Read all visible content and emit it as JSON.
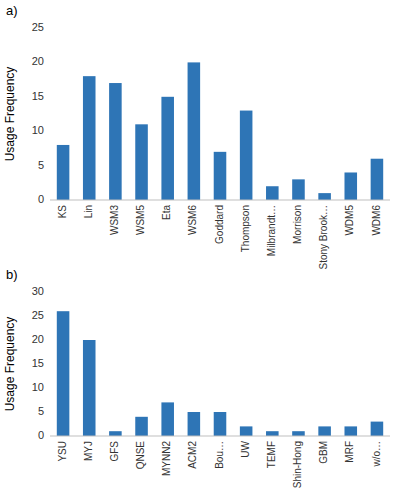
{
  "chart_data": [
    {
      "type": "bar",
      "title": "a)",
      "y_label": "Usage Frequency",
      "categories": [
        "KS",
        "Lin",
        "WSM3",
        "WSM5",
        "Eta",
        "WSM6",
        "Goddard",
        "Thompson",
        "Milbrandt…",
        "Morrison",
        "Stony Brook…",
        "WDM5",
        "WDM6"
      ],
      "values": [
        8,
        18,
        17,
        11,
        15,
        20,
        7,
        13,
        2,
        3,
        1,
        4,
        6
      ],
      "color": "#2e75b6",
      "ylim": [
        0,
        25
      ],
      "yticks": [
        0,
        5,
        10,
        15,
        20,
        25
      ],
      "grid": false
    },
    {
      "type": "bar",
      "title": "b)",
      "y_label": "Usage Frequency",
      "categories": [
        "YSU",
        "MYJ",
        "GFS",
        "QNSE",
        "MYNN2",
        "ACM2",
        "Bou…",
        "UW",
        "TEMF",
        "Shin-Hong",
        "GBM",
        "MRF",
        "w/o…"
      ],
      "values": [
        26,
        20,
        1,
        4,
        7,
        5,
        5,
        2,
        1,
        1,
        2,
        2,
        3
      ],
      "color": "#2e75b6",
      "ylim": [
        0,
        30
      ],
      "yticks": [
        0,
        5,
        10,
        15,
        20,
        25,
        30
      ],
      "grid": false
    }
  ]
}
